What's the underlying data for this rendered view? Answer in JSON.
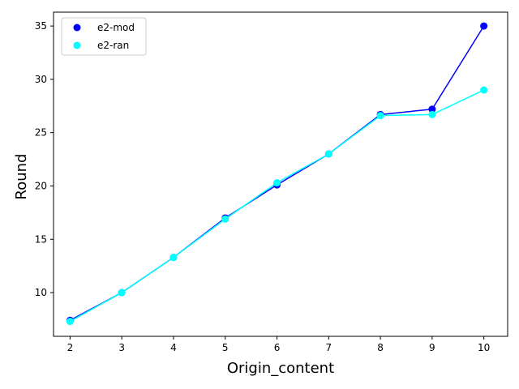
{
  "chart_data": {
    "type": "line",
    "title": "",
    "xlabel": "Origin_content",
    "ylabel": "Round",
    "x": [
      2,
      3,
      4,
      5,
      6,
      7,
      8,
      9,
      10
    ],
    "xticks": [
      2,
      3,
      4,
      5,
      6,
      7,
      8,
      9,
      10
    ],
    "yticks": [
      10,
      15,
      20,
      25,
      30,
      35
    ],
    "xlim": [
      1.68,
      10.46
    ],
    "ylim": [
      5.9,
      36.3
    ],
    "grid": false,
    "legend_position": "upper-left",
    "series": [
      {
        "name": "e2-mod",
        "color": "#0000ff",
        "values": [
          7.4,
          10.0,
          13.3,
          17.0,
          20.1,
          23.0,
          26.7,
          27.2,
          35.0
        ]
      },
      {
        "name": "e2-ran",
        "color": "#00ffff",
        "values": [
          7.3,
          10.0,
          13.3,
          16.9,
          20.3,
          23.0,
          26.6,
          26.7,
          29.0
        ]
      }
    ]
  }
}
